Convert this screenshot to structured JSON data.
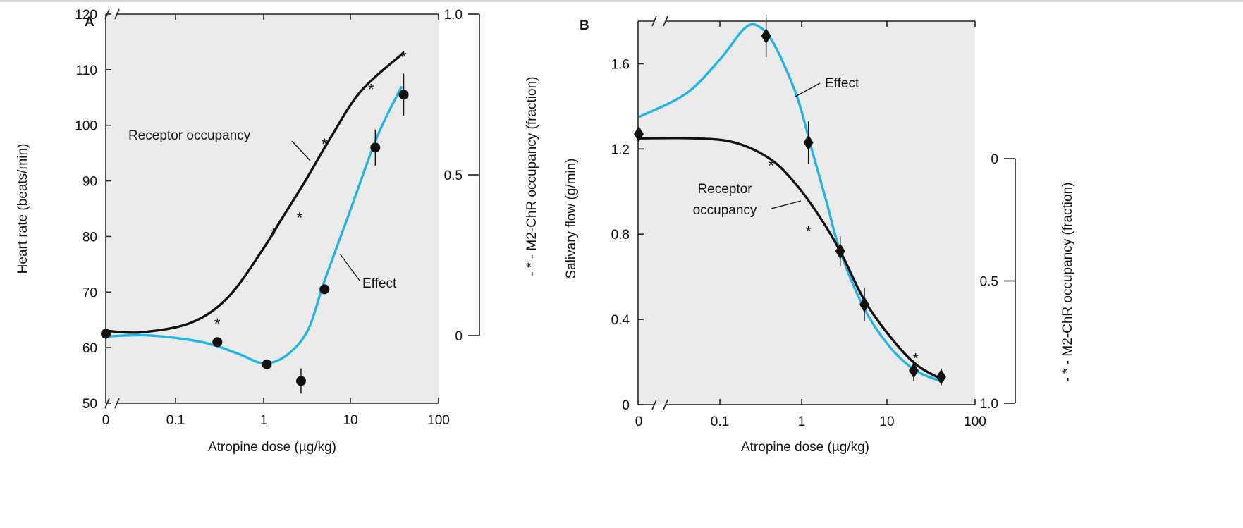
{
  "chart_data": [
    {
      "panel": "A",
      "type": "line",
      "xlabel": "Atropine dose (µg/kg)",
      "x_ticks": [
        "0",
        "0.1",
        "1",
        "10",
        "100"
      ],
      "x_scale": "log (with axis break after 0)",
      "ylabel": "Heart rate (beats/min)",
      "ylim": [
        50,
        120
      ],
      "y_ticks": [
        "50",
        "60",
        "70",
        "80",
        "90",
        "100",
        "110",
        "120"
      ],
      "y2label": "- * - M2-ChR occupancy (fraction)",
      "y2_ticks": [
        "0",
        "0.5",
        "1.0"
      ],
      "y2lim": [
        0,
        1.0
      ],
      "annotations": [
        "Receptor occupancy",
        "Effect"
      ],
      "series": [
        {
          "name": "Effect",
          "axis": "left",
          "marker": "circle",
          "color": "#1fb5e8",
          "points": [
            {
              "x": 0,
              "y": 62.5,
              "err": 0
            },
            {
              "x": 0.3,
              "y": 61,
              "err": 0
            },
            {
              "x": 1.1,
              "y": 57,
              "err": 0
            },
            {
              "x": 2.7,
              "y": 54,
              "err": 1.5
            },
            {
              "x": 5,
              "y": 70.5,
              "err": 0
            },
            {
              "x": 19,
              "y": 96,
              "err": 2.5
            },
            {
              "x": 40,
              "y": 105.5,
              "err": 3
            }
          ]
        },
        {
          "name": "Receptor occupancy",
          "axis": "right",
          "marker": "asterisk",
          "color": "#111111",
          "points": [
            {
              "x": 0.3,
              "y": 0.05
            },
            {
              "x": 1.3,
              "y": 0.33
            },
            {
              "x": 2.6,
              "y": 0.38
            },
            {
              "x": 5,
              "y": 0.61
            },
            {
              "x": 17,
              "y": 0.78
            },
            {
              "x": 40,
              "y": 0.88
            }
          ]
        }
      ]
    },
    {
      "panel": "B",
      "type": "line",
      "xlabel": "Atropine dose (µg/kg)",
      "x_ticks": [
        "0",
        "0.1",
        "1",
        "10",
        "100"
      ],
      "x_scale": "log (with axis break after 0)",
      "ylabel": "Salivary flow (g/min)",
      "ylim": [
        0,
        1.8
      ],
      "y_ticks": [
        "0",
        "0.4",
        "0.8",
        "1.2",
        "1.6"
      ],
      "y2label": "- * - M2-ChR occupancy (fraction)",
      "y2_ticks": [
        "0",
        "0.5",
        "1.0"
      ],
      "y2lim": [
        0,
        1.0
      ],
      "y2_inverted": true,
      "annotations": [
        "Effect",
        "Receptor occupancy"
      ],
      "series": [
        {
          "name": "Effect",
          "axis": "left",
          "marker": "diamond",
          "color": "#1fb5e8",
          "points": [
            {
              "x": 0,
              "y": 1.27,
              "err": 0
            },
            {
              "x": 0.35,
              "y": 1.73,
              "err": 0.08
            },
            {
              "x": 1.1,
              "y": 1.23,
              "err": 0.08
            },
            {
              "x": 2.6,
              "y": 0.72,
              "err": 0.05
            },
            {
              "x": 5,
              "y": 0.47,
              "err": 0.06
            },
            {
              "x": 19,
              "y": 0.16,
              "err": 0.03
            },
            {
              "x": 40,
              "y": 0.13,
              "err": 0.02
            }
          ]
        },
        {
          "name": "Receptor occupancy",
          "axis": "right",
          "marker": "asterisk",
          "color": "#111111",
          "points": [
            {
              "x": 0.4,
              "y": 0.01
            },
            {
              "x": 1.1,
              "y": 0.28
            },
            {
              "x": 2.6,
              "y": 0.36
            },
            {
              "x": 20,
              "y": 0.8
            }
          ]
        }
      ]
    }
  ]
}
